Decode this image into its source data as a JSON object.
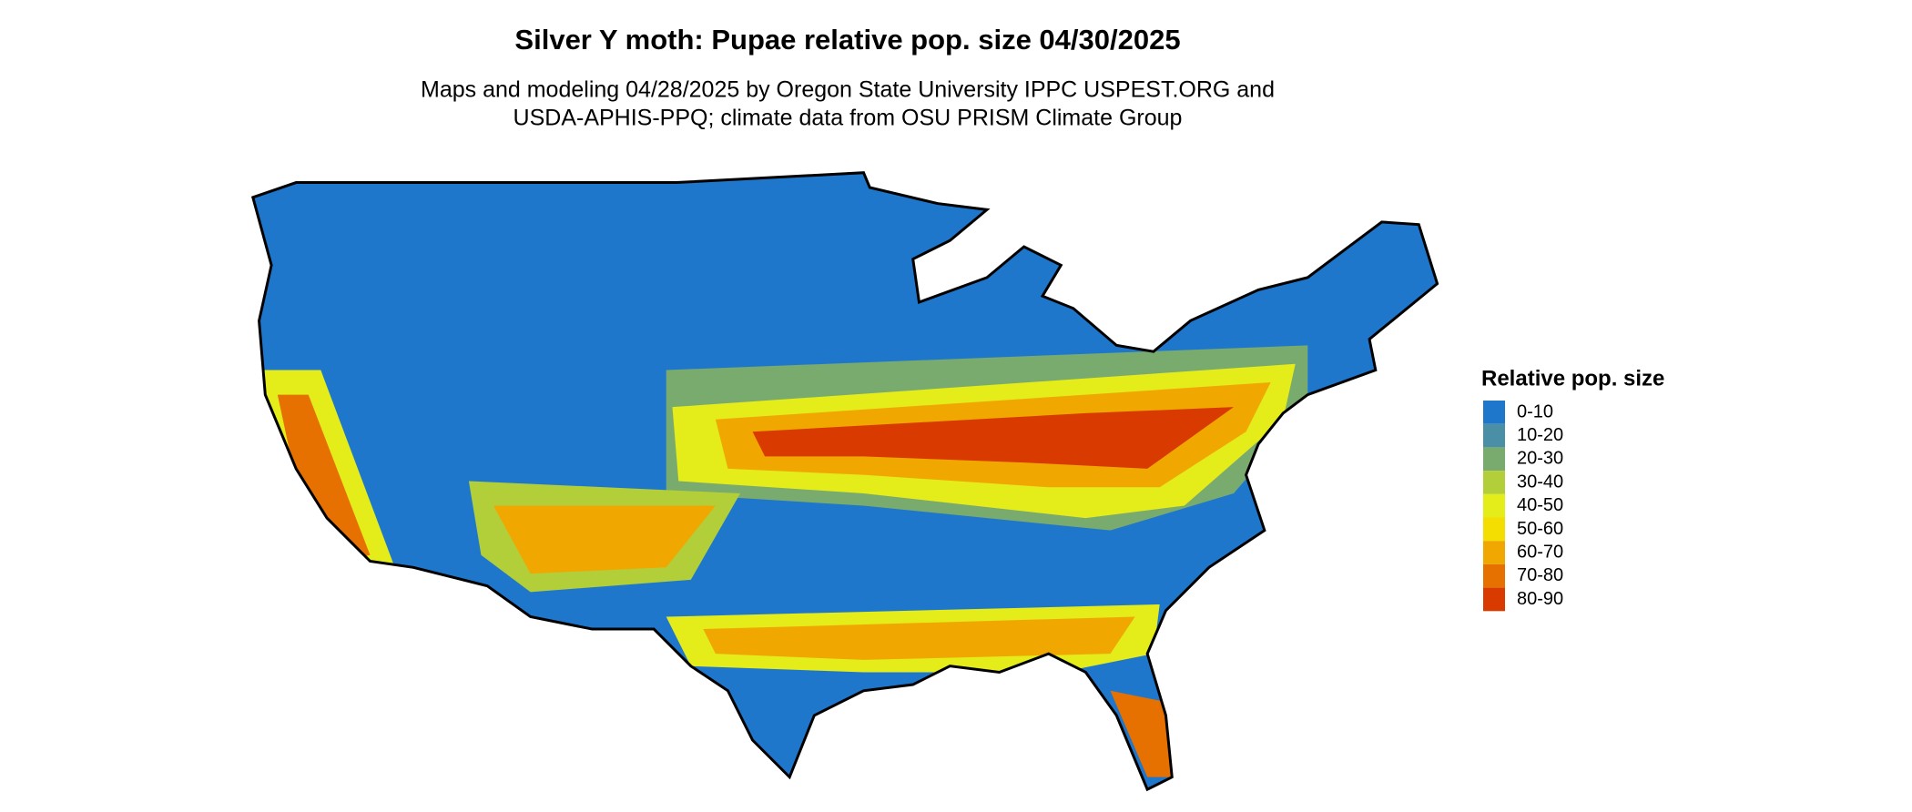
{
  "header": {
    "title": "Silver Y moth: Pupae relative pop. size 04/30/2025",
    "subtitle": [
      "Maps and modeling 04/28/2025 by Oregon State University IPPC USPEST.ORG and",
      "USDA-APHIS-PPQ; climate data from OSU PRISM Climate Group"
    ]
  },
  "legend": {
    "title": "Relative pop. size",
    "items": [
      {
        "label": "0-10",
        "color": "#1f77cc"
      },
      {
        "label": "10-20",
        "color": "#4a8fa5"
      },
      {
        "label": "20-30",
        "color": "#7aab6e"
      },
      {
        "label": "30-40",
        "color": "#b2cf3a"
      },
      {
        "label": "40-50",
        "color": "#e4ec1a"
      },
      {
        "label": "50-60",
        "color": "#f4dd00"
      },
      {
        "label": "60-70",
        "color": "#f0a800"
      },
      {
        "label": "70-80",
        "color": "#e67000"
      },
      {
        "label": "80-90",
        "color": "#d93a00"
      }
    ]
  }
}
